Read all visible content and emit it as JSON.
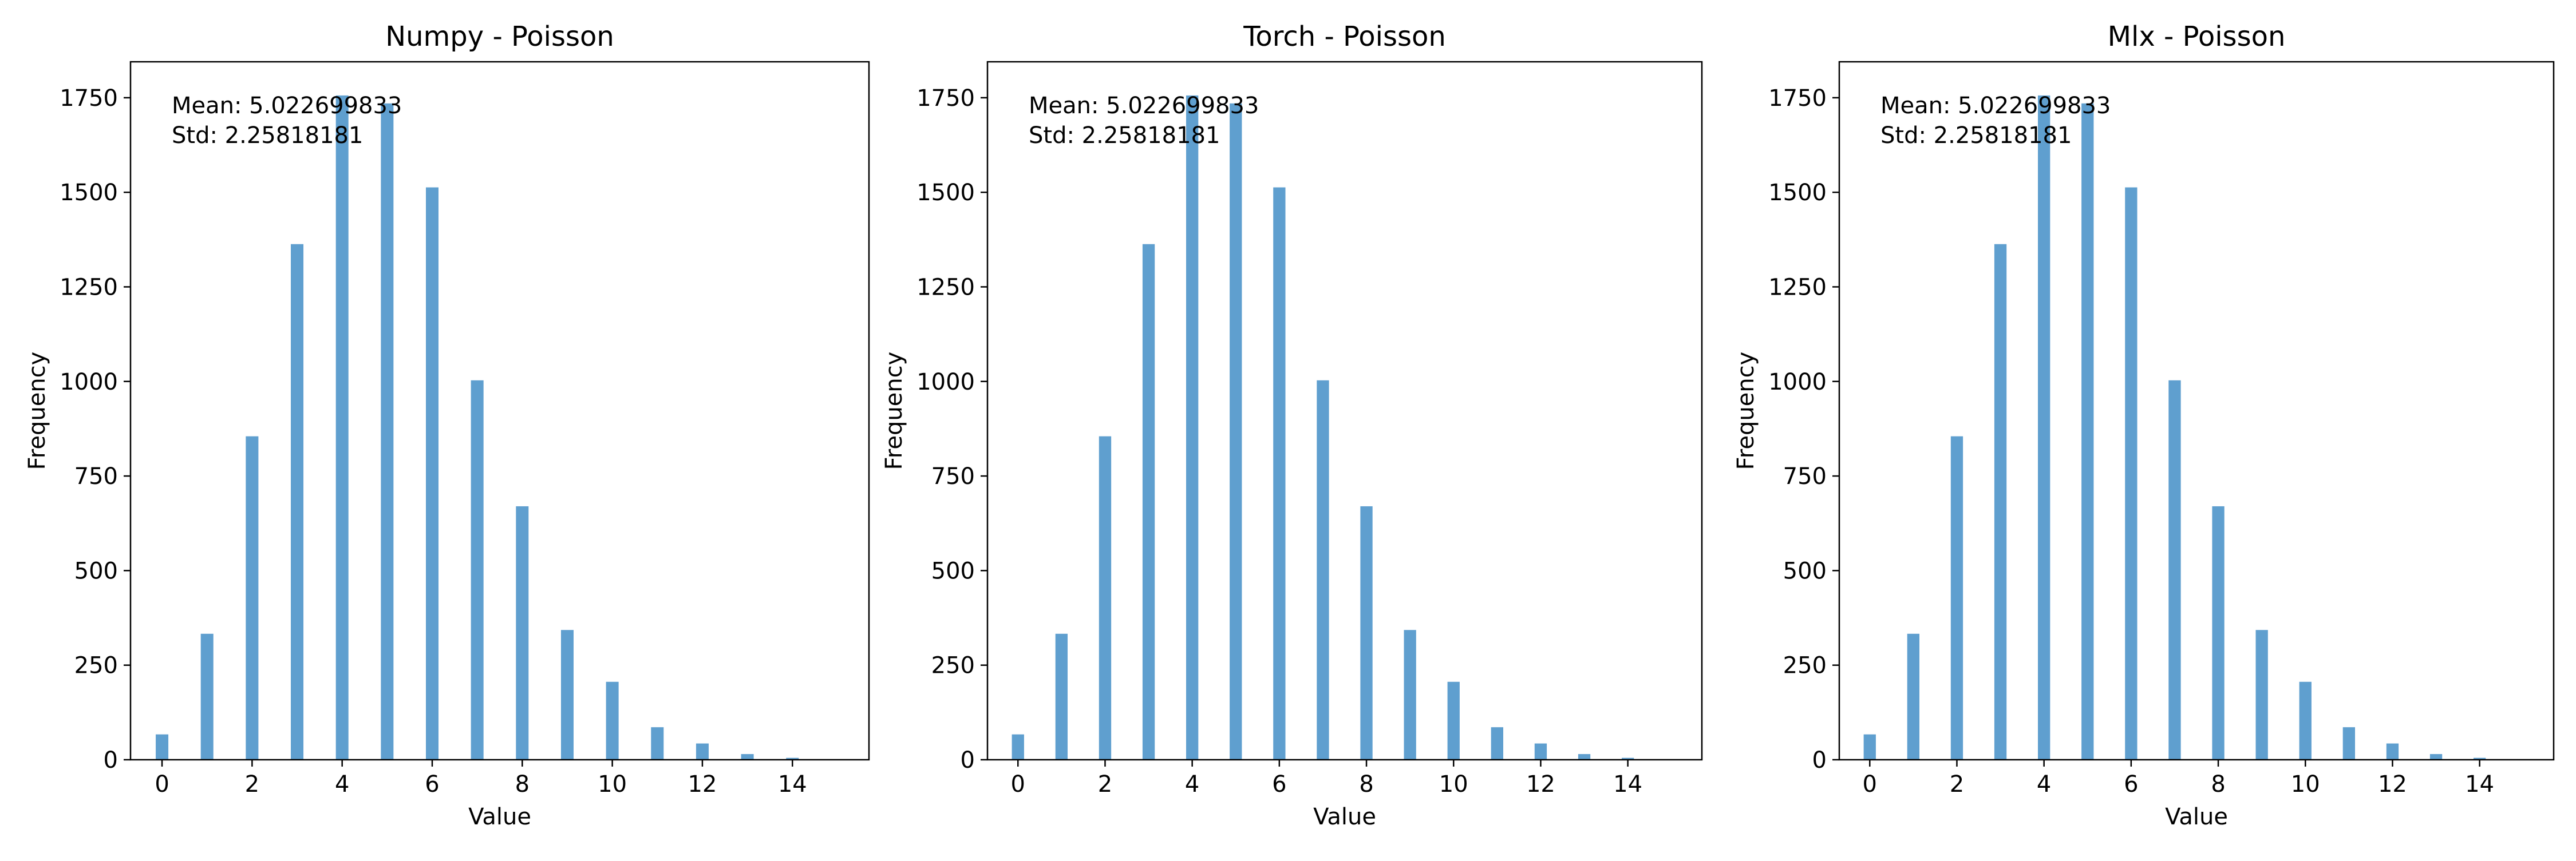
{
  "figure": {
    "background": "#ffffff"
  },
  "chart_data": [
    {
      "type": "bar",
      "title": "Numpy - Poisson",
      "xlabel": "Value",
      "ylabel": "Frequency",
      "xlim": [
        -0.7,
        15.7
      ],
      "ylim": [
        0,
        1845
      ],
      "xticks": [
        0,
        2,
        4,
        6,
        8,
        10,
        12,
        14
      ],
      "yticks": [
        0,
        250,
        500,
        750,
        1000,
        1250,
        1500,
        1750
      ],
      "bar_color": "#5f9fcf",
      "grid": false,
      "x": [
        0,
        1,
        2,
        3,
        4,
        5,
        6,
        7,
        8,
        9,
        10,
        11,
        12,
        13,
        14
      ],
      "values": [
        67,
        333,
        855,
        1363,
        1756,
        1735,
        1513,
        1003,
        670,
        343,
        206,
        86,
        43,
        15,
        5
      ],
      "stats": {
        "mean": "Mean: 5.022699833",
        "std": "Std: 2.25818181"
      }
    },
    {
      "type": "bar",
      "title": "Torch - Poisson",
      "xlabel": "Value",
      "ylabel": "Frequency",
      "xlim": [
        -0.7,
        15.7
      ],
      "ylim": [
        0,
        1845
      ],
      "xticks": [
        0,
        2,
        4,
        6,
        8,
        10,
        12,
        14
      ],
      "yticks": [
        0,
        250,
        500,
        750,
        1000,
        1250,
        1500,
        1750
      ],
      "bar_color": "#5f9fcf",
      "grid": false,
      "x": [
        0,
        1,
        2,
        3,
        4,
        5,
        6,
        7,
        8,
        9,
        10,
        11,
        12,
        13,
        14
      ],
      "values": [
        67,
        333,
        855,
        1363,
        1756,
        1735,
        1513,
        1003,
        670,
        343,
        206,
        86,
        43,
        15,
        5
      ],
      "stats": {
        "mean": "Mean: 5.022699833",
        "std": "Std: 2.25818181"
      }
    },
    {
      "type": "bar",
      "title": "Mlx - Poisson",
      "xlabel": "Value",
      "ylabel": "Frequency",
      "xlim": [
        -0.7,
        15.7
      ],
      "ylim": [
        0,
        1845
      ],
      "xticks": [
        0,
        2,
        4,
        6,
        8,
        10,
        12,
        14
      ],
      "yticks": [
        0,
        250,
        500,
        750,
        1000,
        1250,
        1500,
        1750
      ],
      "bar_color": "#5f9fcf",
      "grid": false,
      "x": [
        0,
        1,
        2,
        3,
        4,
        5,
        6,
        7,
        8,
        9,
        10,
        11,
        12,
        13,
        14
      ],
      "values": [
        67,
        333,
        855,
        1363,
        1756,
        1735,
        1513,
        1003,
        670,
        343,
        206,
        86,
        43,
        15,
        5
      ],
      "stats": {
        "mean": "Mean: 5.022699833",
        "std": "Std: 2.25818181"
      }
    }
  ]
}
